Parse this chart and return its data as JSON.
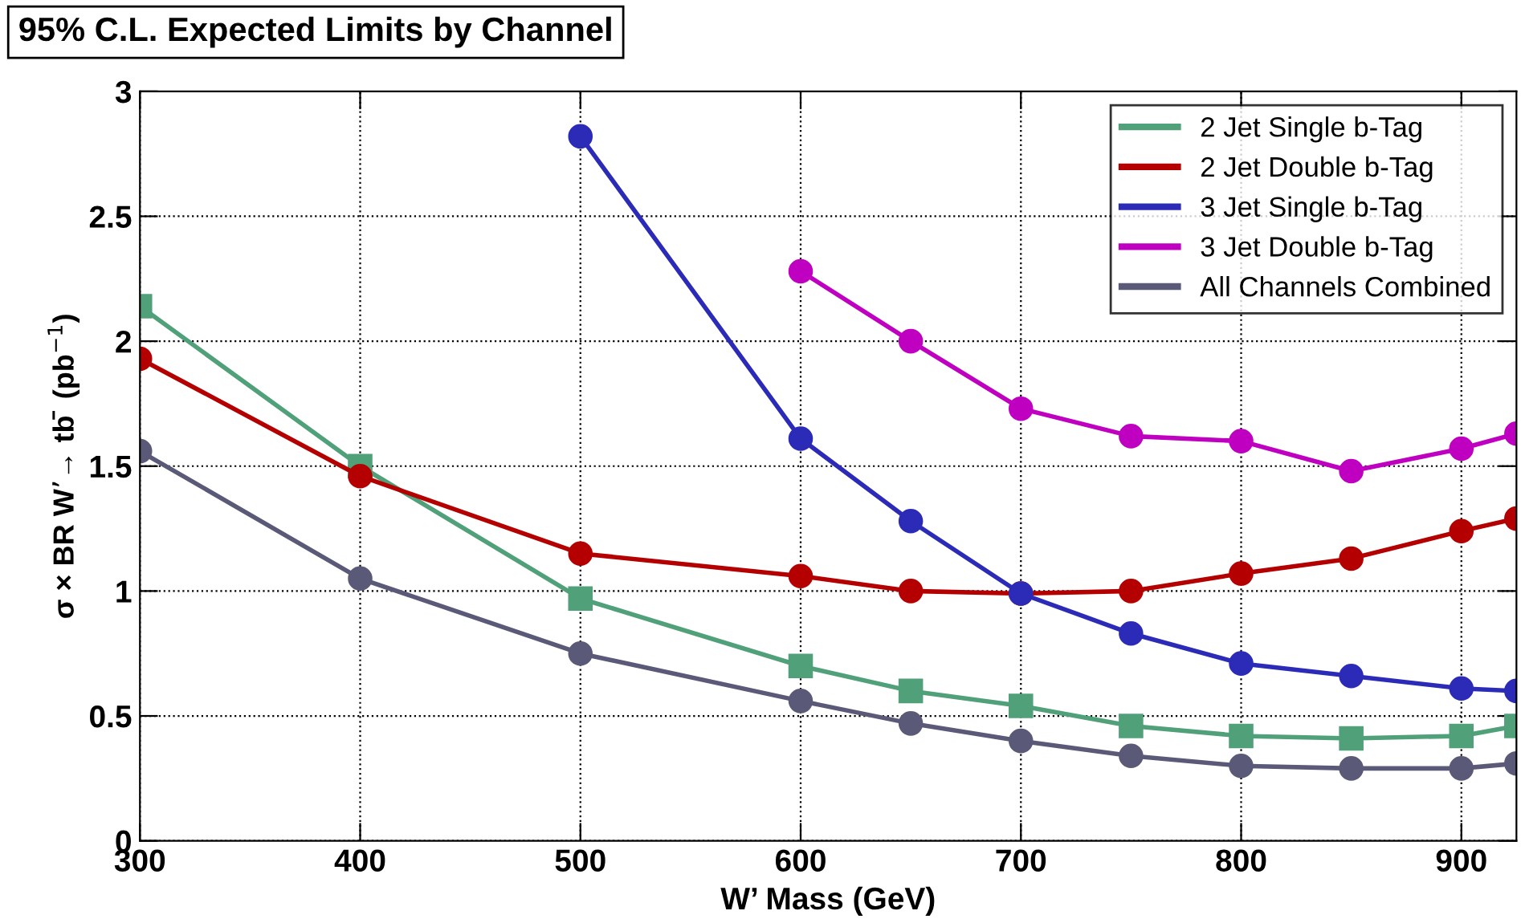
{
  "chart_data": {
    "type": "line",
    "title": "95% C.L. Expected Limits by Channel",
    "xlabel": "W’ Mass (GeV)",
    "ylabel": "σ × BR W’→ tb̄  (pb$^{−1}$)",
    "x": [
      300,
      400,
      500,
      600,
      650,
      700,
      750,
      800,
      850,
      900,
      925
    ],
    "series": [
      {
        "name": "2 Jet Single b-Tag",
        "color": "#50a07a",
        "marker": "square",
        "values": [
          2.14,
          1.5,
          0.97,
          0.7,
          0.6,
          0.54,
          0.46,
          0.42,
          0.41,
          0.42,
          0.46
        ]
      },
      {
        "name": "2 Jet Double b-Tag",
        "color": "#b40000",
        "marker": "circle",
        "values": [
          1.93,
          1.46,
          1.15,
          1.06,
          1.0,
          0.99,
          1.0,
          1.07,
          1.13,
          1.24,
          1.29
        ]
      },
      {
        "name": "3 Jet Single b-Tag",
        "color": "#2b2bb8",
        "marker": "circle",
        "values": [
          null,
          null,
          2.82,
          1.61,
          1.28,
          0.99,
          0.83,
          0.71,
          0.66,
          0.61,
          0.6
        ]
      },
      {
        "name": "3 Jet Double b-Tag",
        "color": "#c000c0",
        "marker": "circle",
        "values": [
          null,
          null,
          null,
          2.28,
          2.0,
          1.73,
          1.62,
          1.6,
          1.48,
          1.57,
          1.63
        ]
      },
      {
        "name": "All Channels Combined",
        "color": "#5a5a78",
        "marker": "circle",
        "values": [
          1.56,
          1.05,
          0.75,
          0.56,
          0.47,
          0.4,
          0.34,
          0.3,
          0.29,
          0.29,
          0.31
        ]
      }
    ],
    "xlim": [
      300,
      925
    ],
    "ylim": [
      0,
      3
    ],
    "xticks": [
      300,
      400,
      500,
      600,
      700,
      800,
      900
    ],
    "yticks": [
      0,
      0.5,
      1,
      1.5,
      2,
      2.5,
      3
    ],
    "grid": true,
    "legend": "top right",
    "line_style": "solid"
  }
}
